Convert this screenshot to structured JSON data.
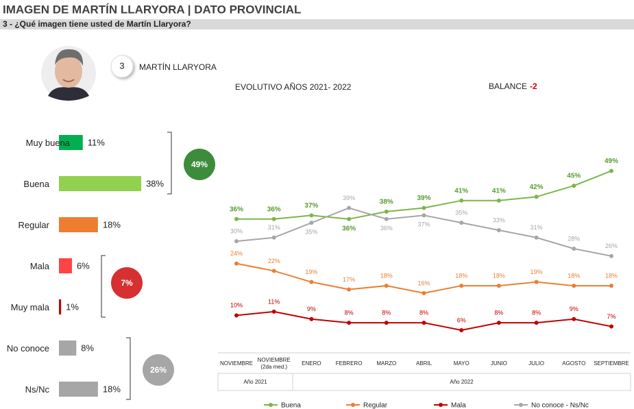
{
  "header": {
    "title": "IMAGEN DE MARTÍN LLARYORA | DATO PROVINCIAL",
    "subtitle": "3 - ¿Qué imagen tiene usted de Martín Llaryora?"
  },
  "candidate": {
    "number": "3",
    "name": "MARTÍN LLARYORA"
  },
  "balance": {
    "label": "BALANCE",
    "value": -2
  },
  "chart_data": [
    {
      "type": "hbar",
      "categories": [
        "Muy buena",
        "Buena",
        "Regular",
        "Mala",
        "Muy mala",
        "No conoce",
        "Ns/Nc"
      ],
      "values": [
        11,
        38,
        18,
        6,
        1,
        8,
        18
      ],
      "value_labels": [
        "11%",
        "38%",
        "18%",
        "6%",
        "1%",
        "8%",
        "18%"
      ],
      "colors": [
        "#00b050",
        "#92d050",
        "#ed7d31",
        "#ff4343",
        "#c00000",
        "#a6a6a6",
        "#a6a6a6"
      ],
      "groups": [
        {
          "value": 49,
          "label": "49%",
          "color": "#3c8c3c"
        },
        {
          "value": 7,
          "label": "7%",
          "color": "#d63030"
        },
        {
          "value": 26,
          "label": "26%",
          "color": "#a6a6a6"
        }
      ]
    },
    {
      "type": "line",
      "title": "EVOLUTIVO AÑOS 2021- 2022",
      "categories": [
        "NOVIEMBRE",
        "NOVIEMBRE (2da med.)",
        "ENERO",
        "FEBRERO",
        "MARZO",
        "ABRIL",
        "MAYO",
        "JUNIO",
        "JULIO",
        "AGOSTO",
        "SEPTIEMBRE"
      ],
      "x_groups": [
        "Año 2021",
        "Año 2022"
      ],
      "ylim": [
        0,
        55
      ],
      "series": [
        {
          "name": "Buena",
          "color": "#7ab648",
          "values": [
            36,
            36,
            37,
            36,
            38,
            39,
            41,
            41,
            42,
            45,
            49
          ],
          "value_labels": [
            "36%",
            "36%",
            "37%",
            "36%",
            "38%",
            "39%",
            "41%",
            "41%",
            "42%",
            "45%",
            "49%"
          ]
        },
        {
          "name": "Regular",
          "color": "#ed7d31",
          "values": [
            24,
            22,
            19,
            17,
            18,
            16,
            18,
            18,
            19,
            18,
            18
          ],
          "value_labels": [
            "24%",
            "22%",
            "19%",
            "17%",
            "18%",
            "16%",
            "18%",
            "18%",
            "19%",
            "18%",
            "18%"
          ]
        },
        {
          "name": "Mala",
          "color": "#c00000",
          "values": [
            10,
            11,
            9,
            8,
            8,
            8,
            6,
            8,
            8,
            9,
            7
          ],
          "value_labels": [
            "10%",
            "11%",
            "9%",
            "8%",
            "8%",
            "8%",
            "6%",
            "8%",
            "8%",
            "9%",
            "7%"
          ]
        },
        {
          "name": "No conoce - Ns/Nc",
          "color": "#a6a6a6",
          "values": [
            30,
            31,
            35,
            39,
            36,
            37,
            35,
            33,
            31,
            28,
            26
          ],
          "value_labels": [
            "30%",
            "31%",
            "35%",
            "39%",
            "36%",
            "37%",
            "35%",
            "33%",
            "31%",
            "28%",
            "26%"
          ]
        }
      ]
    }
  ]
}
